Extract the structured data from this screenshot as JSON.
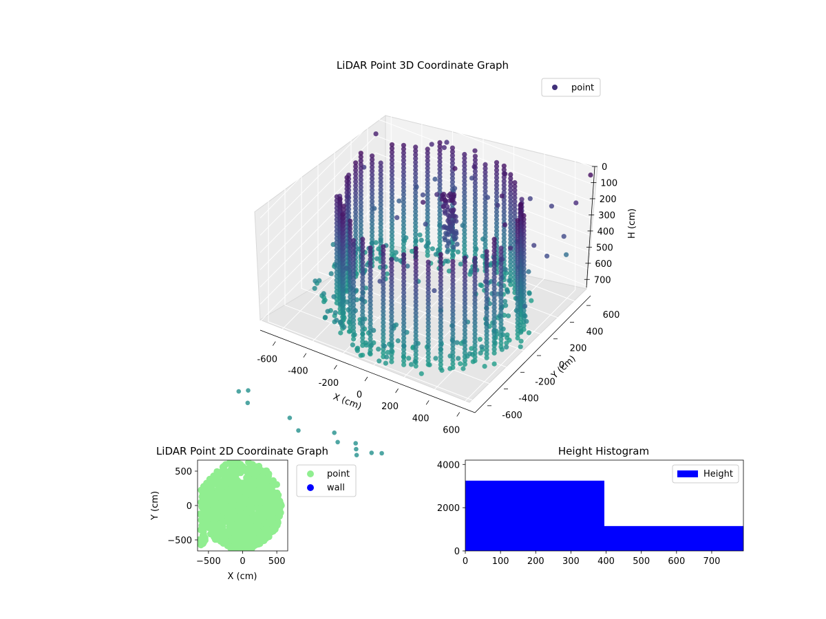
{
  "chart_data": [
    {
      "type": "scatter3d",
      "title": "LiDAR Point 3D Coordinate Graph",
      "xlabel": "X (cm)",
      "ylabel": "Y (cm)",
      "zlabel": "H (cm)",
      "xlim": [
        -700,
        700
      ],
      "ylim": [
        -700,
        700
      ],
      "zlim": [
        750,
        0
      ],
      "z_inverted": true,
      "x_ticks": [
        -600,
        -400,
        -200,
        0,
        200,
        400,
        600
      ],
      "y_ticks": [
        -600,
        -400,
        -200,
        0,
        200,
        400,
        600
      ],
      "z_ticks": [
        0,
        100,
        200,
        300,
        400,
        500,
        600,
        700
      ],
      "grid": true,
      "legend": {
        "placement": "top-right",
        "entries": [
          "point"
        ]
      },
      "colormap": "viridis",
      "series": [
        {
          "name": "point",
          "description_points": "dense cylindrical wall of points, radius about 600, heights 0 to 700",
          "sample_points": [
            {
              "x": -600,
              "y": 250,
              "h": 680
            },
            {
              "x": -560,
              "y": 100,
              "h": 600
            },
            {
              "x": -500,
              "y": -100,
              "h": 500
            },
            {
              "x": -300,
              "y": -400,
              "h": 400
            },
            {
              "x": 0,
              "y": -550,
              "h": 300
            },
            {
              "x": 300,
              "y": -450,
              "h": 300
            },
            {
              "x": 500,
              "y": -200,
              "h": 300
            },
            {
              "x": 600,
              "y": 200,
              "h": 250
            },
            {
              "x": 250,
              "y": 500,
              "h": 100
            },
            {
              "x": 0,
              "y": 600,
              "h": 100
            },
            {
              "x": 300,
              "y": 550,
              "h": 500
            },
            {
              "x": -200,
              "y": 600,
              "h": 150
            },
            {
              "x": 700,
              "y": 700,
              "h": 50
            },
            {
              "x": 500,
              "y": 600,
              "h": 250
            },
            {
              "x": 100,
              "y": 0,
              "h": 700
            },
            {
              "x": -100,
              "y": 100,
              "h": 650
            }
          ]
        }
      ]
    },
    {
      "type": "scatter",
      "title": "LiDAR Point 2D Coordinate Graph",
      "xlabel": "X (cm)",
      "ylabel": "Y (cm)",
      "xlim": [
        -660,
        660
      ],
      "ylim": [
        -660,
        660
      ],
      "x_ticks": [
        -500,
        0,
        500
      ],
      "y_ticks": [
        -500,
        0,
        500
      ],
      "legend": {
        "placement": "outside-right",
        "entries": [
          "point",
          "wall"
        ]
      },
      "series": [
        {
          "name": "point",
          "color": "#90ee90",
          "description_points": "dense filled disc covering about x -660..600, y -660..660"
        },
        {
          "name": "wall",
          "color": "#0000ff",
          "points": []
        }
      ]
    },
    {
      "type": "bar",
      "title": "Height Histogram",
      "xlabel": "",
      "ylabel": "",
      "xlim": [
        0,
        790
      ],
      "ylim": [
        0,
        4200
      ],
      "x_ticks": [
        0,
        100,
        200,
        300,
        400,
        500,
        600,
        700
      ],
      "y_ticks": [
        0,
        2000,
        4000
      ],
      "legend": {
        "placement": "top-right",
        "entries": [
          "Height"
        ]
      },
      "series": [
        {
          "name": "Height",
          "color": "#0000ff",
          "bins": [
            {
              "from": 0,
              "to": 395,
              "count": 3250
            },
            {
              "from": 395,
              "to": 790,
              "count": 1150
            }
          ]
        }
      ]
    }
  ]
}
